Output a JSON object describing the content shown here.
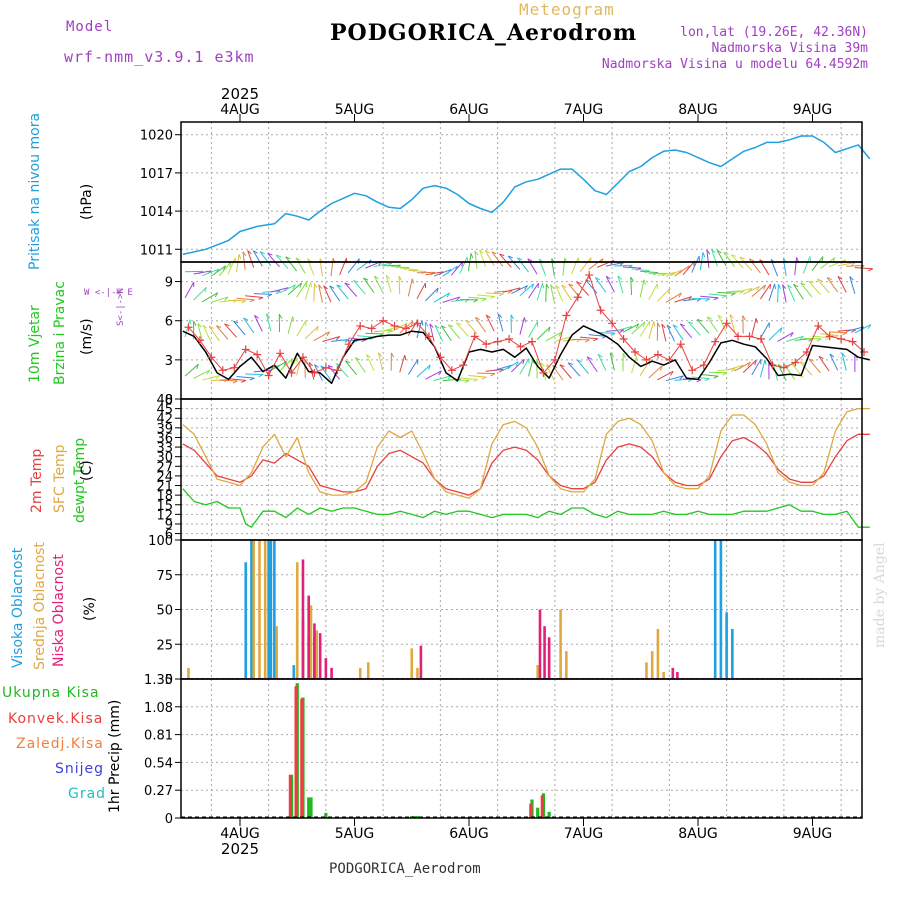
{
  "header": {
    "model_label": "Model",
    "model_name": "wrf-nmm_v3.9.1 e3km",
    "meteogram_label": "Meteogram",
    "station_title": "PODGORICA_Aerodrom",
    "lonlat": "lon,lat (19.26E, 42.36N)",
    "elevation": "Nadmorska Visina 39m",
    "model_elevation": "Nadmorska Visina u modelu 64.4592m",
    "footer_station": "PODGORICA_Aerodrom",
    "watermark": "made by Angel",
    "year_top": "2025",
    "year_bottom": "2025"
  },
  "colors": {
    "pressure": "#1fa0e0",
    "temp2m": "#e84040",
    "sfc": "#e0a840",
    "dewpt": "#22c822",
    "high_cloud": "#1fa0e0",
    "mid_cloud": "#e0a840",
    "low_cloud": "#e0207a",
    "total_precip": "#22b822",
    "conv_precip": "#e84040",
    "frozen": "#f08040",
    "snow": "#4040e0",
    "graupel": "#20c0c0",
    "wind_line": "#000000",
    "gust": "#e84040"
  },
  "panel_labels": {
    "pressure": {
      "name": "Pritisak na nivou mora",
      "unit": "(hPa)"
    },
    "wind": {
      "name1": "10m Vjetar",
      "name2": "Brzina i Pravac",
      "unit": "(m/s)",
      "compass": "W <-|-> E",
      "compass_ns": "S<-|->N"
    },
    "temp": {
      "name1": "2m Temp",
      "name2": "SFC Temp",
      "name3": "dewpt Temp",
      "unit": "(C)"
    },
    "cloud": {
      "name1": "Visoka Oblacnost",
      "name2": "Srednja Oblacnost",
      "name3": "Niska Oblacnost",
      "unit": "(%)"
    },
    "precip": {
      "legend": [
        "Ukupna Kisa",
        "Konvek.Kisa",
        "Zaledj.Kisa",
        "Snijeg",
        "Grad"
      ],
      "unit": "1hr Precip (mm)"
    }
  },
  "chart_data": [
    {
      "type": "line",
      "title": "Pritisak na nivou mora",
      "ylabel": "(hPa)",
      "x_days": [
        "4AUG",
        "5AUG",
        "6AUG",
        "7AUG",
        "8AUG",
        "9AUG"
      ],
      "x_range_days": [
        -0.5,
        5.5
      ],
      "ylim": [
        1010,
        1021
      ],
      "yticks": [
        1011,
        1014,
        1017,
        1020
      ],
      "series": [
        {
          "name": "Pressure",
          "x": [
            -0.5,
            -0.3,
            -0.1,
            0.0,
            0.15,
            0.3,
            0.4,
            0.5,
            0.6,
            0.7,
            0.8,
            0.9,
            1.0,
            1.1,
            1.2,
            1.3,
            1.4,
            1.5,
            1.6,
            1.7,
            1.8,
            1.9,
            2.0,
            2.1,
            2.2,
            2.3,
            2.4,
            2.5,
            2.6,
            2.7,
            2.8,
            2.9,
            3.0,
            3.1,
            3.2,
            3.3,
            3.4,
            3.5,
            3.6,
            3.7,
            3.8,
            3.9,
            4.0,
            4.1,
            4.2,
            4.3,
            4.4,
            4.5,
            4.6,
            4.7,
            4.8,
            4.9,
            5.0,
            5.1,
            5.2,
            5.3,
            5.4,
            5.5
          ],
          "values": [
            1010.6,
            1011.0,
            1011.7,
            1012.4,
            1012.8,
            1013.0,
            1013.8,
            1013.6,
            1013.3,
            1014.0,
            1014.6,
            1015.0,
            1015.4,
            1015.2,
            1014.7,
            1014.3,
            1014.2,
            1014.9,
            1015.8,
            1016.0,
            1015.8,
            1015.3,
            1014.6,
            1014.2,
            1013.9,
            1014.7,
            1015.9,
            1016.3,
            1016.5,
            1016.9,
            1017.3,
            1017.3,
            1016.5,
            1015.6,
            1015.3,
            1016.2,
            1017.1,
            1017.5,
            1018.2,
            1018.7,
            1018.8,
            1018.6,
            1018.2,
            1017.8,
            1017.5,
            1018.1,
            1018.7,
            1019.0,
            1019.4,
            1019.4,
            1019.6,
            1019.9,
            1019.9,
            1019.4,
            1018.6,
            1018.9,
            1019.2,
            1018.1
          ]
        }
      ]
    },
    {
      "type": "line",
      "title": "10m Vjetar Brzina i Pravac",
      "ylabel": "(m/s)",
      "ylim": [
        0,
        10.5
      ],
      "yticks": [
        0,
        3,
        6,
        9
      ],
      "series": [
        {
          "name": "Wind speed",
          "x": [
            -0.5,
            -0.4,
            -0.3,
            -0.2,
            -0.1,
            0.0,
            0.1,
            0.2,
            0.3,
            0.4,
            0.5,
            0.6,
            0.7,
            0.8,
            0.9,
            1.0,
            1.1,
            1.2,
            1.3,
            1.4,
            1.5,
            1.6,
            1.7,
            1.8,
            1.9,
            2.0,
            2.1,
            2.2,
            2.3,
            2.4,
            2.5,
            2.6,
            2.7,
            2.8,
            2.9,
            3.0,
            3.1,
            3.2,
            3.3,
            3.4,
            3.5,
            3.6,
            3.7,
            3.8,
            3.9,
            4.0,
            4.1,
            4.2,
            4.3,
            4.4,
            4.5,
            4.6,
            4.7,
            4.8,
            4.9,
            5.0,
            5.1,
            5.2,
            5.3,
            5.4,
            5.5
          ],
          "values": [
            5.2,
            4.8,
            3.6,
            2.0,
            1.5,
            2.5,
            3.2,
            2.1,
            2.6,
            1.6,
            3.5,
            2.1,
            2.0,
            1.2,
            3.2,
            4.5,
            4.6,
            4.8,
            4.9,
            4.9,
            5.2,
            5.1,
            4.0,
            2.0,
            1.4,
            3.6,
            3.8,
            3.6,
            3.8,
            3.2,
            3.9,
            2.5,
            1.6,
            3.4,
            4.9,
            5.6,
            5.2,
            4.8,
            4.2,
            3.2,
            2.5,
            2.9,
            2.6,
            3.0,
            1.6,
            1.5,
            2.8,
            4.3,
            4.5,
            4.2,
            4.0,
            3.1,
            1.8,
            1.9,
            1.8,
            4.1,
            4.0,
            3.9,
            3.8,
            3.2,
            3.0
          ]
        },
        {
          "name": "Gust",
          "x": [
            -0.45,
            -0.35,
            -0.25,
            -0.15,
            -0.05,
            0.05,
            0.15,
            0.25,
            0.35,
            0.45,
            0.55,
            0.65,
            0.75,
            0.85,
            0.95,
            1.05,
            1.15,
            1.25,
            1.35,
            1.45,
            1.55,
            1.65,
            1.75,
            1.85,
            1.95,
            2.05,
            2.15,
            2.25,
            2.35,
            2.45,
            2.55,
            2.65,
            2.75,
            2.85,
            2.95,
            3.05,
            3.15,
            3.25,
            3.35,
            3.45,
            3.55,
            3.65,
            3.75,
            3.85,
            3.95,
            4.05,
            4.15,
            4.25,
            4.35,
            4.45,
            4.55,
            4.65,
            4.75,
            4.85,
            4.95,
            5.05,
            5.15,
            5.25,
            5.35,
            5.45
          ],
          "values": [
            5.5,
            4.5,
            3.2,
            2.2,
            2.4,
            3.8,
            3.4,
            1.8,
            3.5,
            2.0,
            3.2,
            2.0,
            2.4,
            2.2,
            4.2,
            5.6,
            5.4,
            6.0,
            5.6,
            5.4,
            5.8,
            4.8,
            3.2,
            2.2,
            2.6,
            4.8,
            4.2,
            4.4,
            4.6,
            4.0,
            4.4,
            2.0,
            3.0,
            6.4,
            7.8,
            9.5,
            6.8,
            5.8,
            4.6,
            3.6,
            3.0,
            3.4,
            3.0,
            4.2,
            2.2,
            2.6,
            4.4,
            5.8,
            4.8,
            4.8,
            4.6,
            2.6,
            2.4,
            2.8,
            3.6,
            5.6,
            4.8,
            4.6,
            4.4,
            3.6
          ]
        }
      ]
    },
    {
      "type": "line",
      "title": "Temperature",
      "ylabel": "(C)",
      "ylim": [
        4,
        48
      ],
      "yticks": [
        6,
        9,
        12,
        15,
        18,
        21,
        24,
        27,
        30,
        33,
        36,
        39,
        42,
        45,
        48
      ],
      "series": [
        {
          "name": "2m Temp",
          "x": [
            -0.5,
            -0.4,
            -0.3,
            -0.2,
            -0.1,
            0.0,
            0.1,
            0.2,
            0.3,
            0.4,
            0.5,
            0.6,
            0.7,
            0.8,
            0.9,
            1.0,
            1.1,
            1.2,
            1.3,
            1.4,
            1.5,
            1.6,
            1.7,
            1.8,
            1.9,
            2.0,
            2.1,
            2.2,
            2.3,
            2.4,
            2.5,
            2.6,
            2.7,
            2.8,
            2.9,
            3.0,
            3.1,
            3.2,
            3.3,
            3.4,
            3.5,
            3.6,
            3.7,
            3.8,
            3.9,
            4.0,
            4.1,
            4.2,
            4.3,
            4.4,
            4.5,
            4.6,
            4.7,
            4.8,
            4.9,
            5.0,
            5.1,
            5.2,
            5.3,
            5.4,
            5.5
          ],
          "values": [
            34,
            32,
            28,
            24,
            23,
            22,
            24,
            29,
            28,
            31,
            29,
            27,
            21,
            20,
            19,
            19,
            20,
            27,
            31,
            32,
            30,
            28,
            23,
            20,
            19,
            18,
            20,
            28,
            32,
            33,
            32,
            29,
            24,
            21,
            20,
            20,
            22,
            29,
            33,
            34,
            33,
            30,
            25,
            22,
            21,
            21,
            23,
            30,
            35,
            36,
            34,
            31,
            26,
            23,
            22,
            22,
            24,
            30,
            35,
            37,
            37
          ]
        },
        {
          "name": "SFC Temp",
          "x": [
            -0.5,
            -0.4,
            -0.3,
            -0.2,
            -0.1,
            0.0,
            0.1,
            0.2,
            0.3,
            0.4,
            0.5,
            0.6,
            0.7,
            0.8,
            0.9,
            1.0,
            1.1,
            1.2,
            1.3,
            1.4,
            1.5,
            1.6,
            1.7,
            1.8,
            1.9,
            2.0,
            2.1,
            2.2,
            2.3,
            2.4,
            2.5,
            2.6,
            2.7,
            2.8,
            2.9,
            3.0,
            3.1,
            3.2,
            3.3,
            3.4,
            3.5,
            3.6,
            3.7,
            3.8,
            3.9,
            4.0,
            4.1,
            4.2,
            4.3,
            4.4,
            4.5,
            4.6,
            4.7,
            4.8,
            4.9,
            5.0,
            5.1,
            5.2,
            5.3,
            5.4,
            5.5
          ],
          "values": [
            40,
            37,
            30,
            23,
            22,
            21,
            25,
            33,
            37,
            30,
            36,
            25,
            19,
            18,
            18,
            19,
            22,
            33,
            38,
            36,
            38,
            31,
            23,
            19,
            18,
            17,
            20,
            34,
            40,
            41,
            39,
            33,
            24,
            20,
            19,
            19,
            23,
            37,
            41,
            42,
            40,
            35,
            25,
            21,
            20,
            20,
            24,
            38,
            43,
            43,
            40,
            34,
            25,
            22,
            21,
            21,
            25,
            38,
            44,
            45,
            45
          ]
        },
        {
          "name": "dewpt Temp",
          "x": [
            -0.5,
            -0.45,
            -0.4,
            -0.3,
            -0.2,
            -0.1,
            0.0,
            0.05,
            0.1,
            0.2,
            0.3,
            0.4,
            0.5,
            0.6,
            0.7,
            0.8,
            0.9,
            1.0,
            1.1,
            1.2,
            1.3,
            1.4,
            1.5,
            1.6,
            1.7,
            1.8,
            1.9,
            2.0,
            2.1,
            2.2,
            2.3,
            2.4,
            2.5,
            2.6,
            2.7,
            2.8,
            2.9,
            3.0,
            3.1,
            3.2,
            3.3,
            3.4,
            3.5,
            3.6,
            3.7,
            3.8,
            3.9,
            4.0,
            4.1,
            4.2,
            4.3,
            4.4,
            4.5,
            4.6,
            4.7,
            4.8,
            4.9,
            5.0,
            5.1,
            5.2,
            5.3,
            5.4,
            5.5
          ],
          "values": [
            20,
            18,
            16,
            15,
            16,
            14,
            14,
            9,
            8,
            13,
            13,
            11,
            14,
            12,
            14,
            13,
            14,
            14,
            13,
            12,
            12,
            13,
            12,
            11,
            13,
            12,
            13,
            13,
            12,
            11,
            12,
            12,
            12,
            11,
            13,
            12,
            14,
            14,
            12,
            11,
            13,
            12,
            12,
            12,
            13,
            12,
            12,
            13,
            12,
            12,
            12,
            13,
            13,
            13,
            14,
            15,
            13,
            13,
            12,
            12,
            13,
            8,
            8
          ]
        }
      ]
    },
    {
      "type": "bar",
      "title": "Oblacnost",
      "ylabel": "(%)",
      "ylim": [
        0,
        100
      ],
      "yticks": [
        0,
        25,
        50,
        75,
        100
      ],
      "series": [
        {
          "name": "Visoka Oblacnost",
          "x": [
            0.05,
            0.1,
            0.25,
            0.27,
            0.3,
            0.47,
            0.5,
            0.55,
            0.6,
            0.65,
            2.0,
            4.15,
            4.2,
            4.25,
            4.3
          ],
          "values": [
            84,
            100,
            100,
            100,
            100,
            10,
            42,
            43,
            32,
            30,
            0,
            100,
            100,
            48,
            36
          ]
        },
        {
          "name": "Srednja Oblacnost",
          "x": [
            -0.45,
            0.12,
            0.17,
            0.22,
            0.32,
            0.5,
            0.55,
            0.62,
            0.67,
            1.05,
            1.12,
            1.5,
            1.55,
            3.55,
            3.6,
            3.65,
            3.7,
            2.6,
            2.7,
            2.8,
            2.85
          ],
          "values": [
            8,
            100,
            100,
            100,
            38,
            84,
            42,
            53,
            35,
            8,
            12,
            22,
            8,
            12,
            20,
            36,
            5,
            10,
            22,
            50,
            20
          ]
        },
        {
          "name": "Niska Oblacnost",
          "x": [
            0.55,
            0.6,
            0.65,
            0.7,
            0.75,
            0.8,
            1.58,
            2.62,
            2.66,
            2.7,
            3.78,
            3.82,
            5.03
          ],
          "values": [
            86,
            60,
            40,
            33,
            15,
            8,
            24,
            50,
            38,
            30,
            8,
            5,
            0
          ]
        }
      ]
    },
    {
      "type": "bar",
      "title": "1hr Precip",
      "ylabel": "1hr Precip (mm)",
      "ylim": [
        0,
        1.35
      ],
      "yticks": [
        0,
        0.27,
        0.54,
        0.81,
        1.08,
        1.35
      ],
      "ytick_labels": [
        "0",
        "0.27",
        "0.54",
        "0.81",
        "1.08",
        "1.35"
      ],
      "series": [
        {
          "name": "Ukupna Kisa",
          "x": [
            0.45,
            0.5,
            0.55,
            0.6,
            0.62,
            0.75,
            1.5,
            1.55,
            2.55,
            2.6,
            2.65,
            2.7
          ],
          "values": [
            0.42,
            1.31,
            1.17,
            0.2,
            0.2,
            0.05,
            0.02,
            0.02,
            0.18,
            0.1,
            0.24,
            0.06
          ]
        },
        {
          "name": "Konvek.Kisa",
          "x": [
            0.44,
            0.49,
            0.54,
            2.54,
            2.64
          ],
          "values": [
            0.42,
            1.28,
            1.16,
            0.14,
            0.22
          ]
        },
        {
          "name": "Zaledj.Kisa",
          "x": [],
          "values": []
        },
        {
          "name": "Snijeg",
          "x": [],
          "values": []
        },
        {
          "name": "Grad",
          "x": [],
          "values": []
        }
      ]
    }
  ]
}
